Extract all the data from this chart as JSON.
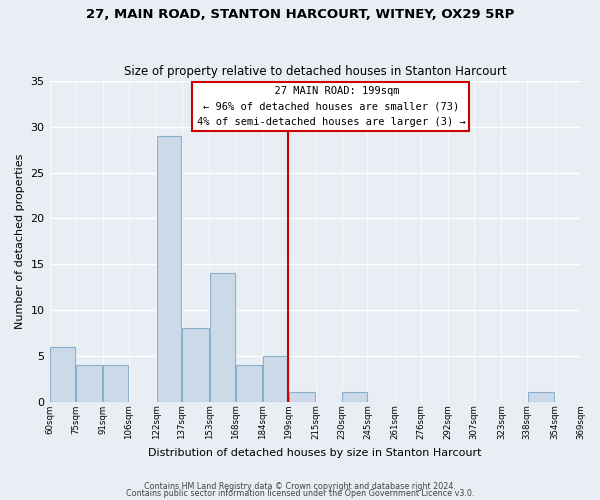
{
  "title": "27, MAIN ROAD, STANTON HARCOURT, WITNEY, OX29 5RP",
  "subtitle": "Size of property relative to detached houses in Stanton Harcourt",
  "xlabel": "Distribution of detached houses by size in Stanton Harcourt",
  "ylabel": "Number of detached properties",
  "bar_edges": [
    60,
    75,
    91,
    106,
    122,
    137,
    153,
    168,
    184,
    199,
    215,
    230,
    245,
    261,
    276,
    292,
    307,
    323,
    338,
    354,
    369
  ],
  "bar_heights": [
    6,
    4,
    4,
    0,
    29,
    8,
    14,
    4,
    5,
    1,
    0,
    1,
    0,
    0,
    0,
    0,
    0,
    0,
    1,
    0
  ],
  "bar_color": "#ccd9e8",
  "bar_edgecolor": "#8ab0cc",
  "vline_x": 199,
  "vline_color": "#cc0000",
  "annotation_title": "27 MAIN ROAD: 199sqm",
  "annotation_line1": "← 96% of detached houses are smaller (73)",
  "annotation_line2": "4% of semi-detached houses are larger (3) →",
  "annotation_box_edgecolor": "#cc0000",
  "annotation_box_facecolor": "#ffffff",
  "ylim": [
    0,
    35
  ],
  "yticks": [
    0,
    5,
    10,
    15,
    20,
    25,
    30,
    35
  ],
  "tick_labels": [
    "60sqm",
    "75sqm",
    "91sqm",
    "106sqm",
    "122sqm",
    "137sqm",
    "153sqm",
    "168sqm",
    "184sqm",
    "199sqm",
    "215sqm",
    "230sqm",
    "245sqm",
    "261sqm",
    "276sqm",
    "292sqm",
    "307sqm",
    "323sqm",
    "338sqm",
    "354sqm",
    "369sqm"
  ],
  "footer_line1": "Contains HM Land Registry data © Crown copyright and database right 2024.",
  "footer_line2": "Contains public sector information licensed under the Open Government Licence v3.0.",
  "bg_color": "#e8eef4",
  "grid_color": "#ffffff",
  "font_family": "DejaVu Sans"
}
